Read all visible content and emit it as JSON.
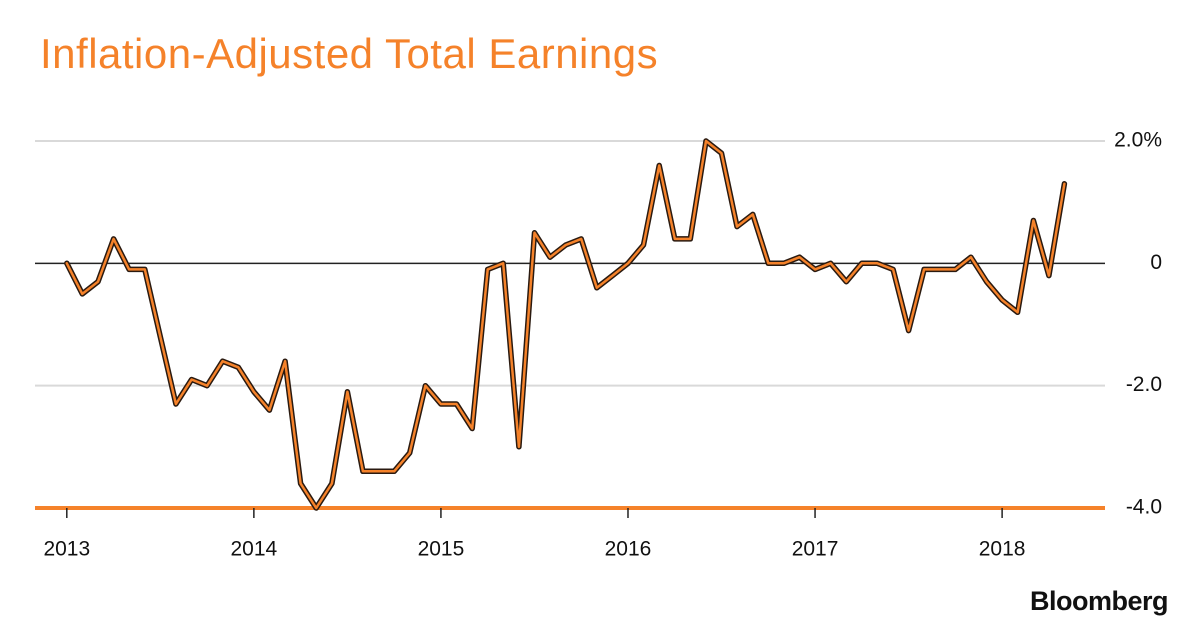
{
  "chart_data": {
    "type": "line",
    "title": "Inflation-Adjusted Total Earnings",
    "source": "Bloomberg",
    "x": [
      2013,
      2013.083,
      2013.167,
      2013.25,
      2013.333,
      2013.417,
      2013.5,
      2013.583,
      2013.667,
      2013.75,
      2013.833,
      2013.917,
      2014,
      2014.083,
      2014.167,
      2014.25,
      2014.333,
      2014.417,
      2014.5,
      2014.583,
      2014.667,
      2014.75,
      2014.833,
      2014.917,
      2015,
      2015.083,
      2015.167,
      2015.25,
      2015.333,
      2015.417,
      2015.5,
      2015.583,
      2015.667,
      2015.75,
      2015.833,
      2015.917,
      2016,
      2016.083,
      2016.167,
      2016.25,
      2016.333,
      2016.417,
      2016.5,
      2016.583,
      2016.667,
      2016.75,
      2016.833,
      2016.917,
      2017,
      2017.083,
      2017.167,
      2017.25,
      2017.333,
      2017.417,
      2017.5,
      2017.583,
      2017.667,
      2017.75,
      2017.833,
      2017.917,
      2018,
      2018.083,
      2018.167,
      2018.25,
      2018.333
    ],
    "series": [
      {
        "color": "#f5822a",
        "values": [
          0,
          -0.5,
          -0.3,
          0.4,
          -0.1,
          -0.1,
          -1.2,
          -2.3,
          -1.9,
          -2.0,
          -1.6,
          -1.7,
          -2.1,
          -2.4,
          -1.6,
          -3.6,
          -4.0,
          -3.6,
          -2.1,
          -3.4,
          -3.4,
          -3.4,
          -3.1,
          -2.0,
          -2.3,
          -2.3,
          -2.7,
          -0.1,
          0,
          -3.0,
          0.5,
          0.1,
          0.3,
          0.4,
          -0.4,
          -0.2,
          0,
          0.3,
          1.6,
          0.4,
          0.4,
          2.0,
          1.8,
          0.6,
          0.8,
          0,
          0,
          0.1,
          -0.1,
          0,
          -0.3,
          0,
          0,
          -0.1,
          -1.1,
          -0.1,
          -0.1,
          -0.1,
          0.1,
          -0.3,
          -0.6,
          -0.8,
          0.7,
          -0.2,
          1.3
        ]
      }
    ],
    "xlim": [
      2012.83,
      2018.55
    ],
    "xticks": [
      2013,
      2014,
      2015,
      2016,
      2017,
      2018
    ],
    "ylim": [
      -4,
      2
    ],
    "yticks": [
      {
        "value": 2,
        "label": "2.0%"
      },
      0,
      {
        "value": -2,
        "label": "-2.0"
      },
      {
        "value": -4,
        "label": "-4.0"
      }
    ],
    "grid": true
  }
}
